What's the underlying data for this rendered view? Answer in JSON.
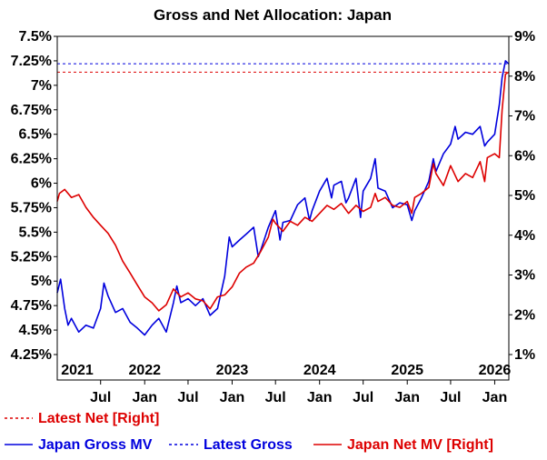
{
  "chart_data": {
    "type": "line",
    "title": "Gross and Net Allocation: Japan",
    "xlabel": "",
    "y_left": {
      "label": "",
      "min": 4.25,
      "max": 7.5,
      "ticks": [
        "7.5%",
        "7.25%",
        "7%",
        "6.75%",
        "6.5%",
        "6.25%",
        "6%",
        "5.75%",
        "5.5%",
        "5.25%",
        "5%",
        "4.75%",
        "4.5%",
        "4.25%"
      ]
    },
    "y_right": {
      "label": "",
      "min": 1,
      "max": 9,
      "ticks": [
        "9%",
        "8%",
        "7%",
        "6%",
        "5%",
        "4%",
        "3%",
        "2%",
        "1%"
      ]
    },
    "x_range": [
      "2021-01",
      "2026-03"
    ],
    "year_labels": [
      "2021",
      "2022",
      "2023",
      "2024",
      "2025",
      "2026"
    ],
    "month_labels": [
      "Jul",
      "Jan",
      "Jul",
      "Jan",
      "Jul",
      "Jan",
      "Jul",
      "Jan",
      "Jul",
      "Jan",
      "Jul",
      "Jan"
    ],
    "grid": false,
    "colors": {
      "gross": "#0000dd",
      "net": "#dd0000"
    },
    "reference_lines": [
      {
        "name": "Latest Gross",
        "axis": "left",
        "value": 7.22,
        "color": "#0000dd",
        "style": "dashed"
      },
      {
        "name": "Latest Net [Right]",
        "axis": "right",
        "value": 8.1,
        "color": "#dd0000",
        "style": "dashed"
      }
    ],
    "series": [
      {
        "name": "Japan Gross MV",
        "axis": "left",
        "color": "#0000dd",
        "points": [
          [
            "2021-01",
            4.88
          ],
          [
            "2021-01-15",
            5.02
          ],
          [
            "2021-02",
            4.72
          ],
          [
            "2021-02-15",
            4.55
          ],
          [
            "2021-03",
            4.62
          ],
          [
            "2021-04",
            4.48
          ],
          [
            "2021-05",
            4.55
          ],
          [
            "2021-06",
            4.52
          ],
          [
            "2021-07",
            4.72
          ],
          [
            "2021-07-15",
            4.98
          ],
          [
            "2021-08",
            4.85
          ],
          [
            "2021-09",
            4.68
          ],
          [
            "2021-10",
            4.72
          ],
          [
            "2021-11",
            4.58
          ],
          [
            "2021-12",
            4.52
          ],
          [
            "2022-01",
            4.45
          ],
          [
            "2022-02",
            4.55
          ],
          [
            "2022-03",
            4.62
          ],
          [
            "2022-04",
            4.48
          ],
          [
            "2022-05",
            4.78
          ],
          [
            "2022-05-15",
            4.95
          ],
          [
            "2022-06",
            4.78
          ],
          [
            "2022-07",
            4.82
          ],
          [
            "2022-08",
            4.75
          ],
          [
            "2022-09",
            4.82
          ],
          [
            "2022-10",
            4.65
          ],
          [
            "2022-11",
            4.72
          ],
          [
            "2022-12",
            5.05
          ],
          [
            "2022-12-20",
            5.45
          ],
          [
            "2023-01",
            5.35
          ],
          [
            "2023-02",
            5.42
          ],
          [
            "2023-03",
            5.48
          ],
          [
            "2023-04",
            5.55
          ],
          [
            "2023-04-20",
            5.25
          ],
          [
            "2023-05",
            5.32
          ],
          [
            "2023-06",
            5.55
          ],
          [
            "2023-07",
            5.72
          ],
          [
            "2023-07-20",
            5.42
          ],
          [
            "2023-08",
            5.6
          ],
          [
            "2023-09",
            5.62
          ],
          [
            "2023-10",
            5.78
          ],
          [
            "2023-11",
            5.85
          ],
          [
            "2023-11-20",
            5.62
          ],
          [
            "2023-12",
            5.72
          ],
          [
            "2024-01",
            5.92
          ],
          [
            "2024-02",
            6.05
          ],
          [
            "2024-02-20",
            5.85
          ],
          [
            "2024-03",
            5.98
          ],
          [
            "2024-04",
            6.02
          ],
          [
            "2024-04-20",
            5.8
          ],
          [
            "2024-05",
            5.85
          ],
          [
            "2024-06",
            6.05
          ],
          [
            "2024-06-20",
            5.65
          ],
          [
            "2024-07",
            5.92
          ],
          [
            "2024-08",
            6.05
          ],
          [
            "2024-08-20",
            6.25
          ],
          [
            "2024-09",
            5.95
          ],
          [
            "2024-10",
            5.92
          ],
          [
            "2024-11",
            5.75
          ],
          [
            "2024-12",
            5.8
          ],
          [
            "2025-01",
            5.78
          ],
          [
            "2025-01-20",
            5.62
          ],
          [
            "2025-02",
            5.72
          ],
          [
            "2025-03",
            5.85
          ],
          [
            "2025-04",
            6.02
          ],
          [
            "2025-04-20",
            6.25
          ],
          [
            "2025-05",
            6.12
          ],
          [
            "2025-06",
            6.3
          ],
          [
            "2025-07",
            6.4
          ],
          [
            "2025-07-20",
            6.58
          ],
          [
            "2025-08",
            6.45
          ],
          [
            "2025-09",
            6.52
          ],
          [
            "2025-10",
            6.5
          ],
          [
            "2025-11",
            6.58
          ],
          [
            "2025-11-20",
            6.38
          ],
          [
            "2025-12",
            6.42
          ],
          [
            "2026-01",
            6.5
          ],
          [
            "2026-01-20",
            6.8
          ],
          [
            "2026-02",
            7.08
          ],
          [
            "2026-02-15",
            7.25
          ],
          [
            "2026-02-28",
            7.22
          ]
        ]
      },
      {
        "name": "Japan Net MV [Right]",
        "axis": "right",
        "color": "#dd0000",
        "points": [
          [
            "2021-01",
            4.85
          ],
          [
            "2021-01-10",
            5.05
          ],
          [
            "2021-02",
            5.15
          ],
          [
            "2021-03",
            4.95
          ],
          [
            "2021-04",
            5.02
          ],
          [
            "2021-05",
            4.7
          ],
          [
            "2021-06",
            4.45
          ],
          [
            "2021-07",
            4.25
          ],
          [
            "2021-08",
            4.05
          ],
          [
            "2021-09",
            3.75
          ],
          [
            "2021-10",
            3.35
          ],
          [
            "2021-11",
            3.05
          ],
          [
            "2021-12",
            2.75
          ],
          [
            "2022-01",
            2.45
          ],
          [
            "2022-02",
            2.3
          ],
          [
            "2022-03",
            2.1
          ],
          [
            "2022-04",
            2.25
          ],
          [
            "2022-05",
            2.65
          ],
          [
            "2022-06",
            2.45
          ],
          [
            "2022-07",
            2.55
          ],
          [
            "2022-08",
            2.4
          ],
          [
            "2022-09",
            2.35
          ],
          [
            "2022-10",
            2.15
          ],
          [
            "2022-11",
            2.45
          ],
          [
            "2022-12",
            2.5
          ],
          [
            "2023-01",
            2.7
          ],
          [
            "2023-02",
            3.05
          ],
          [
            "2023-03",
            3.2
          ],
          [
            "2023-04",
            3.3
          ],
          [
            "2023-05",
            3.6
          ],
          [
            "2023-06",
            3.95
          ],
          [
            "2023-06-20",
            4.4
          ],
          [
            "2023-07",
            4.3
          ],
          [
            "2023-08",
            4.1
          ],
          [
            "2023-09",
            4.35
          ],
          [
            "2023-10",
            4.25
          ],
          [
            "2023-11",
            4.45
          ],
          [
            "2023-12",
            4.35
          ],
          [
            "2024-01",
            4.55
          ],
          [
            "2024-02",
            4.75
          ],
          [
            "2024-03",
            4.65
          ],
          [
            "2024-04",
            4.8
          ],
          [
            "2024-05",
            4.55
          ],
          [
            "2024-06",
            4.75
          ],
          [
            "2024-07",
            4.6
          ],
          [
            "2024-08",
            4.7
          ],
          [
            "2024-08-20",
            5.05
          ],
          [
            "2024-09",
            4.85
          ],
          [
            "2024-10",
            4.95
          ],
          [
            "2024-11",
            4.75
          ],
          [
            "2024-12",
            4.7
          ],
          [
            "2025-01",
            4.85
          ],
          [
            "2025-01-20",
            4.55
          ],
          [
            "2025-02",
            4.95
          ],
          [
            "2025-03",
            5.05
          ],
          [
            "2025-04",
            5.2
          ],
          [
            "2025-04-20",
            5.8
          ],
          [
            "2025-05",
            5.55
          ],
          [
            "2025-06",
            5.25
          ],
          [
            "2025-07",
            5.75
          ],
          [
            "2025-08",
            5.35
          ],
          [
            "2025-09",
            5.55
          ],
          [
            "2025-10",
            5.45
          ],
          [
            "2025-11",
            5.85
          ],
          [
            "2025-11-20",
            5.35
          ],
          [
            "2025-12",
            5.95
          ],
          [
            "2026-01",
            6.05
          ],
          [
            "2026-01-20",
            5.95
          ],
          [
            "2026-02",
            7.15
          ],
          [
            "2026-02-15",
            8.05
          ],
          [
            "2026-02-28",
            8.1
          ]
        ]
      }
    ],
    "legend": {
      "placement": "bottom",
      "rows": [
        [
          {
            "label": "Latest Net [Right]",
            "color": "#dd0000",
            "style": "dashed"
          }
        ],
        [
          {
            "label": "Japan Gross MV",
            "color": "#0000dd",
            "style": "solid"
          },
          {
            "label": "Latest Gross",
            "color": "#0000dd",
            "style": "dashed"
          },
          {
            "label": "Japan Net MV [Right]",
            "color": "#dd0000",
            "style": "solid"
          }
        ]
      ]
    }
  }
}
